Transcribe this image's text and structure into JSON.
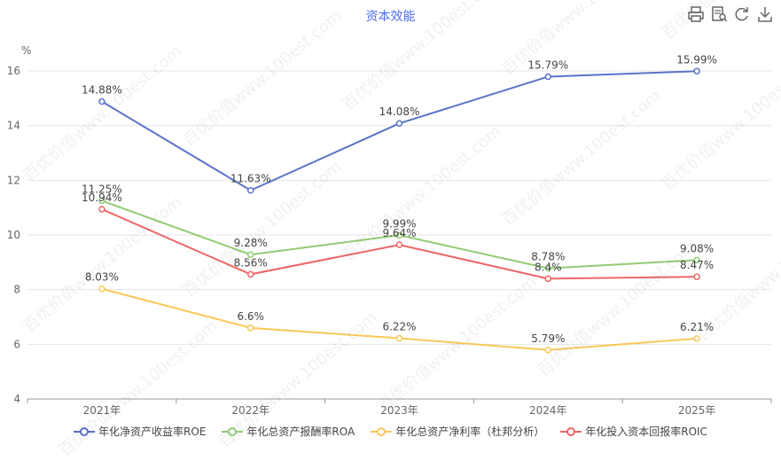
{
  "title": "资本效能",
  "unit": "%",
  "toolbar": [
    {
      "name": "print-icon"
    },
    {
      "name": "data-view-icon"
    },
    {
      "name": "refresh-icon"
    },
    {
      "name": "download-icon"
    }
  ],
  "watermark": "百优价值www.100est.com",
  "colors": {
    "title": "#4e6ef2",
    "grid": "#e6e6e6",
    "axis": "#999999"
  },
  "chart_data": {
    "type": "line",
    "title": "资本效能",
    "ylabel": "%",
    "categories": [
      "2021年",
      "2022年",
      "2023年",
      "2024年",
      "2025年"
    ],
    "ylim": [
      4,
      16
    ],
    "yticks": [
      4,
      6,
      8,
      10,
      12,
      14,
      16
    ],
    "grid": true,
    "legend_position": "bottom",
    "series": [
      {
        "name": "年化净资产收益率ROE",
        "color": "#5b73c8",
        "values": [
          14.88,
          11.63,
          14.08,
          15.79,
          15.99
        ],
        "labels": [
          "14.88%",
          "11.63%",
          "14.08%",
          "15.79%",
          "15.99%"
        ]
      },
      {
        "name": "年化总资产报酬率ROA",
        "color": "#91cc75",
        "values": [
          11.25,
          9.28,
          9.99,
          8.78,
          9.08
        ],
        "labels": [
          "11.25%",
          "9.28%",
          "9.99%",
          "8.78%",
          "9.08%"
        ]
      },
      {
        "name": "年化总资产净利率（杜邦分析）",
        "color": "#fac858",
        "values": [
          8.03,
          6.6,
          6.22,
          5.79,
          6.21
        ],
        "labels": [
          "8.03%",
          "6.6%",
          "6.22%",
          "5.79%",
          "6.21%"
        ]
      },
      {
        "name": "年化投入资本回报率ROIC",
        "color": "#ee6666",
        "values": [
          10.94,
          8.56,
          9.64,
          8.4,
          8.47
        ],
        "labels": [
          "10.94%",
          "8.56%",
          "9.64%",
          "8.4%",
          "8.47%"
        ]
      }
    ]
  }
}
